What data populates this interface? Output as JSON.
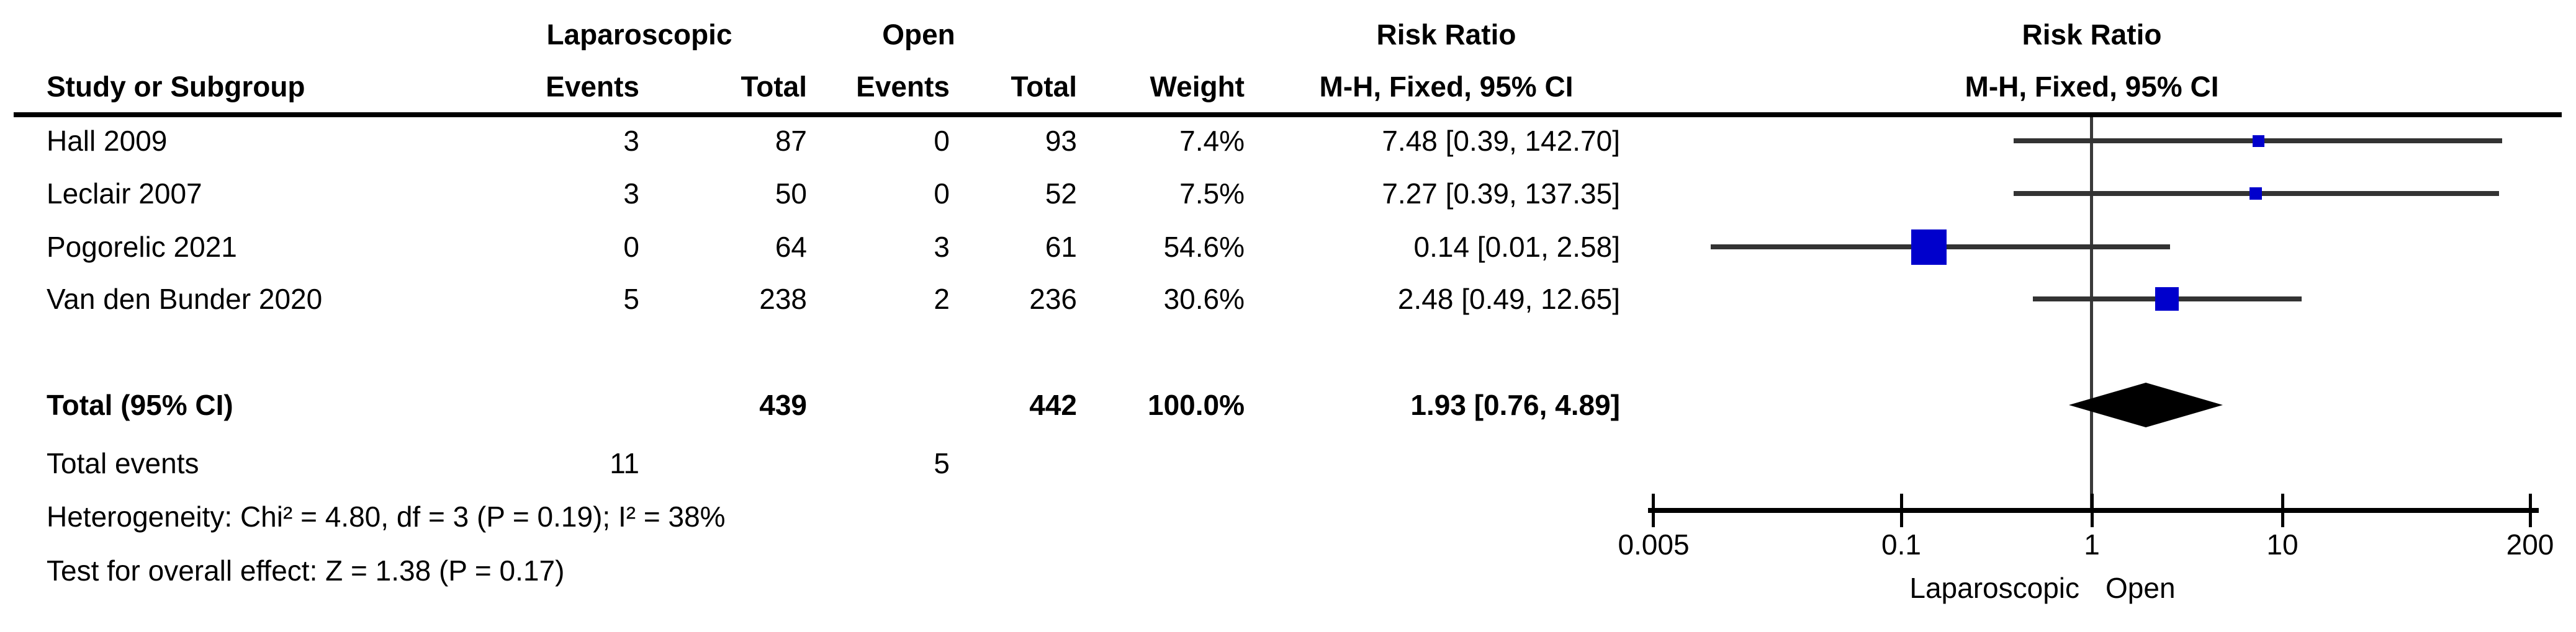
{
  "header": {
    "group_experimental": "Laparoscopic",
    "group_control": "Open",
    "study_col": "Study or Subgroup",
    "events_col_experimental": "Events",
    "total_col_experimental": "Total",
    "events_col_control": "Events",
    "total_col_control": "Total",
    "weight_col": "Weight",
    "rr_title": "Risk Ratio",
    "rr_method_col": "M-H, Fixed, 95% CI",
    "plot_rr_title": "Risk Ratio",
    "plot_rr_method": "M-H, Fixed, 95% CI"
  },
  "chart_data": {
    "type": "forest",
    "x_scale": "log10",
    "x_tick_labels": [
      "0.005",
      "0.1",
      "1",
      "10",
      "200"
    ],
    "x_tick_values": [
      0.005,
      0.1,
      1,
      10,
      200
    ],
    "x_range": [
      0.005,
      200
    ],
    "ref_value": 1,
    "marker_color": "#0000CC",
    "ci_line_color": "#333333",
    "diamond_color": "#000000",
    "studies": [
      {
        "label": "Hall 2009",
        "exp_events": "3",
        "exp_total": "87",
        "ctl_events": "0",
        "ctl_total": "93",
        "weight": "7.4%",
        "weight_pct": 7.4,
        "rr": 7.48,
        "ci_low": 0.39,
        "ci_high": 142.7,
        "rr_ci_text": "7.48 [0.39, 142.70]"
      },
      {
        "label": "Leclair 2007",
        "exp_events": "3",
        "exp_total": "50",
        "ctl_events": "0",
        "ctl_total": "52",
        "weight": "7.5%",
        "weight_pct": 7.5,
        "rr": 7.27,
        "ci_low": 0.39,
        "ci_high": 137.35,
        "rr_ci_text": "7.27 [0.39, 137.35]"
      },
      {
        "label": "Pogorelic 2021",
        "exp_events": "0",
        "exp_total": "64",
        "ctl_events": "3",
        "ctl_total": "61",
        "weight": "54.6%",
        "weight_pct": 54.6,
        "rr": 0.14,
        "ci_low": 0.01,
        "ci_high": 2.58,
        "rr_ci_text": "0.14 [0.01, 2.58]"
      },
      {
        "label": "Van den Bunder 2020",
        "exp_events": "5",
        "exp_total": "238",
        "ctl_events": "2",
        "ctl_total": "236",
        "weight": "30.6%",
        "weight_pct": 30.6,
        "rr": 2.48,
        "ci_low": 0.49,
        "ci_high": 12.65,
        "rr_ci_text": "2.48 [0.49, 12.65]"
      }
    ],
    "total": {
      "label": "Total (95% CI)",
      "exp_total": "439",
      "ctl_total": "442",
      "weight": "100.0%",
      "rr": 1.93,
      "ci_low": 0.76,
      "ci_high": 4.89,
      "rr_ci_text": "1.93 [0.76, 4.89]"
    },
    "total_events": {
      "label": "Total events",
      "exp": "11",
      "ctl": "5"
    },
    "footnotes": {
      "heterogeneity": "Heterogeneity: Chi² = 4.80, df = 3 (P = 0.19); I² = 38%",
      "overall_effect": "Test for overall effect: Z = 1.38 (P = 0.17)"
    },
    "axis_labels": {
      "left": "Laparoscopic",
      "right": "Open"
    }
  }
}
